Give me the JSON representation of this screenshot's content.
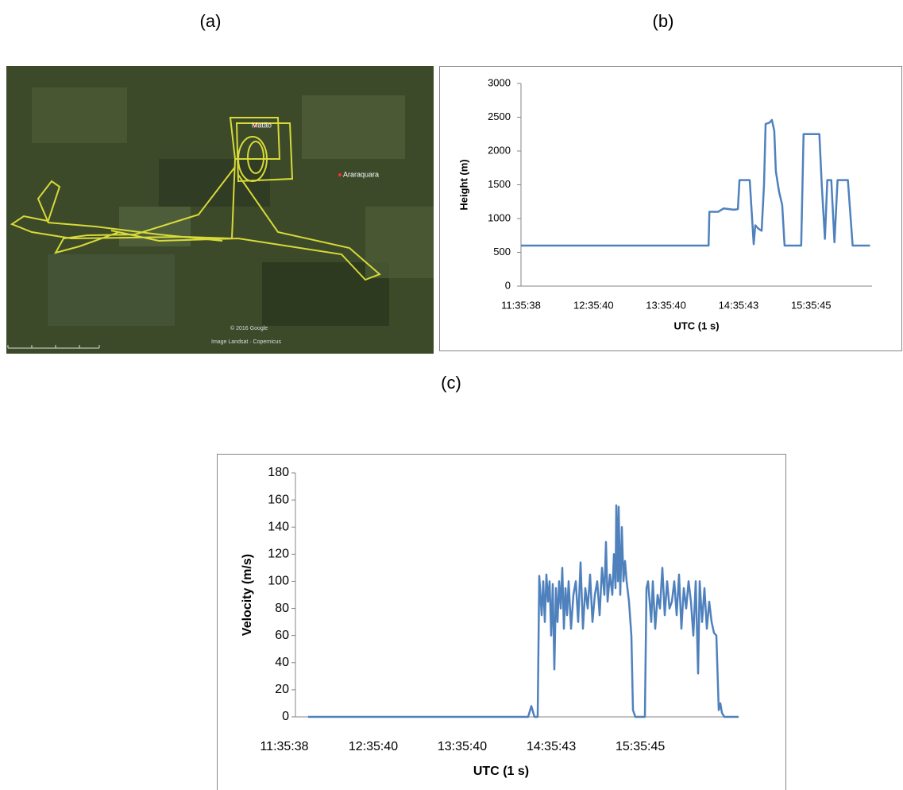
{
  "map": {
    "panel_label": "(a)",
    "places": [
      "Matão",
      "Araraquara"
    ],
    "attribution": [
      "© 2016 Google",
      "Image Landsat · Copernicus"
    ]
  },
  "chart_data": [
    {
      "type": "line",
      "panel_label": "(b)",
      "ylabel": "Height (m)",
      "xlabel": "UTC (1 s)",
      "xlim": [
        41738,
        59172
      ],
      "ylim": [
        0,
        3000
      ],
      "yticks": [
        0,
        500,
        1000,
        1500,
        2000,
        2500,
        3000
      ],
      "xticks": [
        {
          "value": 41738,
          "label": "11:35:38"
        },
        {
          "value": 45340,
          "label": "12:35:40"
        },
        {
          "value": 48940,
          "label": "13:35:40"
        },
        {
          "value": 52543,
          "label": "14:35:43"
        },
        {
          "value": 56145,
          "label": "15:35:45"
        }
      ],
      "color": "#4f81bd",
      "x": [
        41738,
        51055,
        51094,
        51526,
        51801,
        52313,
        52509,
        52588,
        53099,
        53217,
        53296,
        53374,
        53531,
        53689,
        53806,
        53885,
        54081,
        54199,
        54317,
        54396,
        54553,
        54710,
        54828,
        55654,
        55772,
        56558,
        56676,
        56833,
        56951,
        57148,
        57305,
        57462,
        57973,
        58209,
        59074
      ],
      "values": [
        600,
        600,
        1100,
        1100,
        1150,
        1130,
        1140,
        1570,
        1570,
        1000,
        620,
        900,
        850,
        820,
        1500,
        2400,
        2420,
        2460,
        2300,
        1700,
        1400,
        1200,
        600,
        600,
        2250,
        2250,
        1500,
        700,
        1570,
        1570,
        650,
        1570,
        1570,
        600,
        600
      ]
    },
    {
      "type": "line",
      "panel_label": "(c)",
      "ylabel": "Velocity (m/s)",
      "xlabel": "UTC (1 s)",
      "xlim": [
        42188,
        60128
      ],
      "ylim": [
        0,
        180
      ],
      "yticks": [
        0,
        20,
        40,
        60,
        80,
        100,
        120,
        140,
        160,
        180
      ],
      "xticks": [
        {
          "value": 41738,
          "label": "11:35:38"
        },
        {
          "value": 45340,
          "label": "12:35:40"
        },
        {
          "value": 48940,
          "label": "13:35:40"
        },
        {
          "value": 52543,
          "label": "14:35:43"
        },
        {
          "value": 56145,
          "label": "15:35:45"
        }
      ],
      "color": "#4f81bd",
      "x": [
        42703,
        51608,
        51737,
        51865,
        51994,
        52058,
        52155,
        52219,
        52283,
        52348,
        52412,
        52476,
        52540,
        52605,
        52669,
        52733,
        52798,
        52862,
        52926,
        52991,
        53055,
        53119,
        53183,
        53248,
        53344,
        53441,
        53537,
        53634,
        53730,
        53826,
        53923,
        54019,
        54116,
        54212,
        54309,
        54405,
        54502,
        54598,
        54694,
        54759,
        54823,
        54920,
        55016,
        55080,
        55145,
        55177,
        55241,
        55273,
        55337,
        55402,
        55466,
        55530,
        55595,
        55691,
        55788,
        55852,
        55948,
        56334,
        56398,
        56463,
        56527,
        56591,
        56656,
        56752,
        56849,
        56945,
        57041,
        57138,
        57234,
        57331,
        57427,
        57524,
        57620,
        57717,
        57813,
        57909,
        58006,
        58102,
        58199,
        58295,
        58392,
        58488,
        58552,
        58649,
        58745,
        58842,
        58938,
        59035,
        59131,
        59228,
        59324,
        59388,
        59453,
        59549,
        60128
      ],
      "values": [
        0,
        0,
        8,
        0,
        0,
        104,
        75,
        100,
        70,
        105,
        85,
        100,
        60,
        98,
        35,
        95,
        70,
        100,
        80,
        110,
        65,
        95,
        75,
        100,
        65,
        90,
        100,
        70,
        114,
        65,
        95,
        80,
        105,
        70,
        90,
        100,
        75,
        110,
        90,
        129,
        85,
        105,
        90,
        120,
        95,
        156,
        100,
        155,
        90,
        140,
        100,
        115,
        100,
        85,
        60,
        5,
        0,
        0,
        95,
        100,
        85,
        70,
        100,
        65,
        90,
        80,
        110,
        75,
        100,
        80,
        85,
        100,
        75,
        105,
        65,
        95,
        80,
        100,
        85,
        60,
        100,
        32,
        100,
        70,
        95,
        65,
        85,
        70,
        62,
        60,
        5,
        10,
        3,
        0,
        0
      ]
    }
  ]
}
